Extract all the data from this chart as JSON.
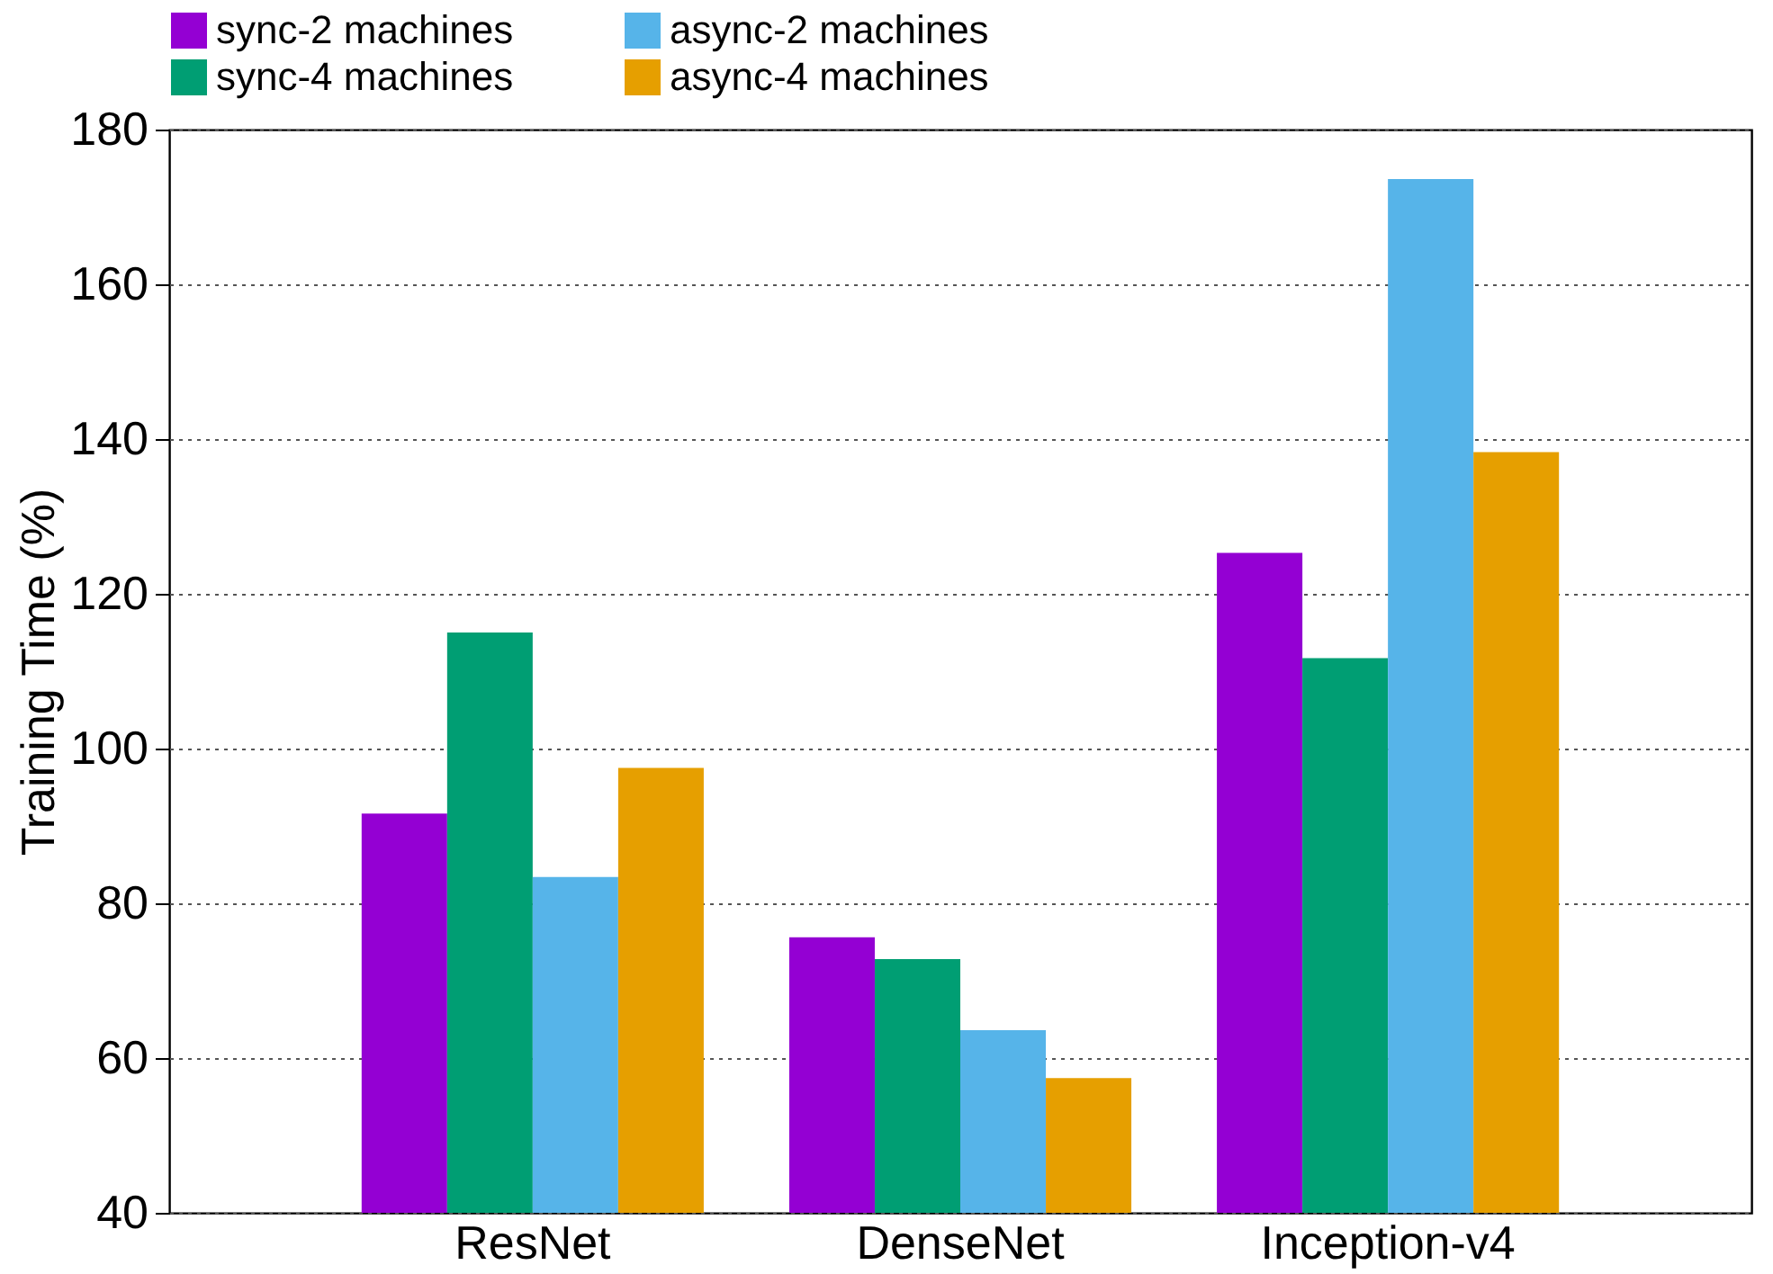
{
  "chart_data": {
    "type": "bar",
    "ylabel": "Training Time (%)",
    "categories": [
      "ResNet",
      "DenseNet",
      "Inception-v4"
    ],
    "series": [
      {
        "name": "sync-2 machines",
        "color": "#9400d3",
        "values": [
          91.6,
          75.6,
          125.3
        ]
      },
      {
        "name": "sync-4 machines",
        "color": "#009e73",
        "values": [
          115,
          72.8,
          111.7
        ]
      },
      {
        "name": "async-2 machines",
        "color": "#56b4e9",
        "values": [
          83.4,
          63.6,
          173.6
        ]
      },
      {
        "name": "async-4 machines",
        "color": "#e69f00",
        "values": [
          97.5,
          57.4,
          138.3
        ]
      }
    ],
    "ylim": [
      40,
      180
    ],
    "yticks": [
      40,
      60,
      80,
      100,
      120,
      140,
      160,
      180
    ],
    "grid": "y",
    "legend": "top"
  }
}
